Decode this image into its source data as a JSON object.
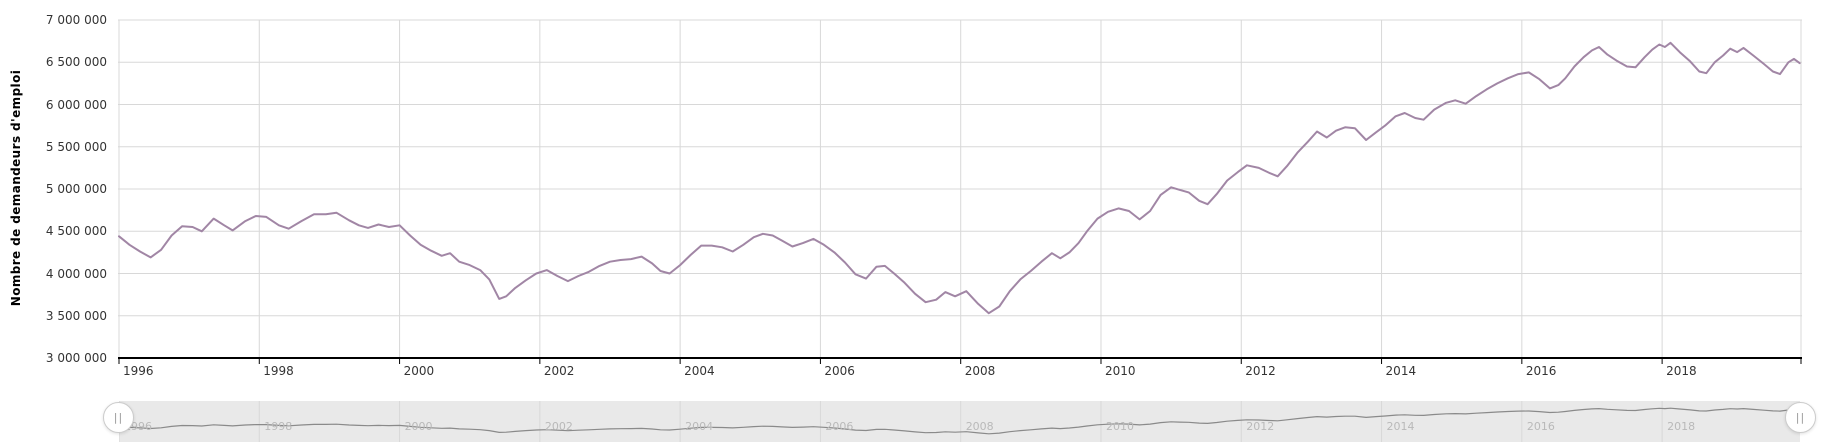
{
  "colors": {
    "series": "#a186a5",
    "grid": "#d8d8d8",
    "axis_line": "#000000",
    "tick_text": "#333333",
    "nav_bg": "#e9e9e9",
    "nav_grid": "#d8d8d8",
    "nav_line": "#8a8a8a",
    "nav_label": "#b9b9b9",
    "handle_border": "#cccccc",
    "handle_bg": "#ffffff",
    "handle_grip": "#999999"
  },
  "navigator": {
    "handle_icon": "||",
    "year_labels": [
      "1996",
      "1998",
      "2000",
      "2002",
      "2004",
      "2006",
      "2008",
      "2010",
      "2012",
      "2014",
      "2016",
      "2018"
    ]
  },
  "chart_data": {
    "type": "line",
    "title": "",
    "xlabel": "",
    "ylabel": "Nombre de demandeurs d'emploi",
    "grid": true,
    "legend": "none",
    "xlim": [
      1996,
      2019.98
    ],
    "ylim": [
      3000000,
      7000000
    ],
    "x_tick_years": [
      1996,
      1998,
      2000,
      2002,
      2004,
      2006,
      2008,
      2010,
      2012,
      2014,
      2016,
      2018
    ],
    "x_tick_labels": [
      "1996",
      "1998",
      "2000",
      "2002",
      "2004",
      "2006",
      "2008",
      "2010",
      "2012",
      "2014",
      "2016",
      "2018"
    ],
    "y_tick_values": [
      3000000,
      3500000,
      4000000,
      4500000,
      5000000,
      5500000,
      6000000,
      6500000,
      7000000
    ],
    "y_tick_labels": [
      "3 000 000",
      "3 500 000",
      "4 000 000",
      "4 500 000",
      "5 000 000",
      "5 500 000",
      "6 000 000",
      "6 500 000",
      "7 000 000"
    ],
    "series": [
      {
        "name": "Nombre de demandeurs d'emploi",
        "points": [
          [
            1996.0,
            4440000
          ],
          [
            1996.15,
            4340000
          ],
          [
            1996.3,
            4260000
          ],
          [
            1996.45,
            4190000
          ],
          [
            1996.6,
            4280000
          ],
          [
            1996.75,
            4450000
          ],
          [
            1996.9,
            4560000
          ],
          [
            1997.05,
            4550000
          ],
          [
            1997.18,
            4500000
          ],
          [
            1997.35,
            4650000
          ],
          [
            1997.5,
            4570000
          ],
          [
            1997.62,
            4510000
          ],
          [
            1997.8,
            4620000
          ],
          [
            1997.95,
            4680000
          ],
          [
            1998.1,
            4670000
          ],
          [
            1998.28,
            4570000
          ],
          [
            1998.42,
            4530000
          ],
          [
            1998.6,
            4620000
          ],
          [
            1998.78,
            4700000
          ],
          [
            1998.95,
            4700000
          ],
          [
            1999.1,
            4720000
          ],
          [
            1999.28,
            4630000
          ],
          [
            1999.42,
            4570000
          ],
          [
            1999.55,
            4540000
          ],
          [
            1999.7,
            4580000
          ],
          [
            1999.85,
            4550000
          ],
          [
            2000.0,
            4570000
          ],
          [
            2000.15,
            4450000
          ],
          [
            2000.3,
            4340000
          ],
          [
            2000.45,
            4270000
          ],
          [
            2000.6,
            4210000
          ],
          [
            2000.72,
            4240000
          ],
          [
            2000.85,
            4140000
          ],
          [
            2001.0,
            4100000
          ],
          [
            2001.15,
            4040000
          ],
          [
            2001.28,
            3930000
          ],
          [
            2001.42,
            3700000
          ],
          [
            2001.52,
            3730000
          ],
          [
            2001.65,
            3830000
          ],
          [
            2001.8,
            3920000
          ],
          [
            2001.95,
            4000000
          ],
          [
            2002.1,
            4040000
          ],
          [
            2002.25,
            3970000
          ],
          [
            2002.4,
            3910000
          ],
          [
            2002.55,
            3970000
          ],
          [
            2002.7,
            4020000
          ],
          [
            2002.85,
            4090000
          ],
          [
            2003.0,
            4140000
          ],
          [
            2003.15,
            4160000
          ],
          [
            2003.3,
            4170000
          ],
          [
            2003.45,
            4200000
          ],
          [
            2003.6,
            4120000
          ],
          [
            2003.72,
            4030000
          ],
          [
            2003.85,
            4000000
          ],
          [
            2004.0,
            4100000
          ],
          [
            2004.15,
            4220000
          ],
          [
            2004.3,
            4330000
          ],
          [
            2004.45,
            4330000
          ],
          [
            2004.6,
            4310000
          ],
          [
            2004.75,
            4260000
          ],
          [
            2004.9,
            4340000
          ],
          [
            2005.05,
            4430000
          ],
          [
            2005.18,
            4470000
          ],
          [
            2005.32,
            4450000
          ],
          [
            2005.45,
            4390000
          ],
          [
            2005.6,
            4320000
          ],
          [
            2005.75,
            4360000
          ],
          [
            2005.9,
            4410000
          ],
          [
            2006.05,
            4340000
          ],
          [
            2006.2,
            4250000
          ],
          [
            2006.35,
            4130000
          ],
          [
            2006.5,
            3990000
          ],
          [
            2006.65,
            3940000
          ],
          [
            2006.8,
            4080000
          ],
          [
            2006.92,
            4090000
          ],
          [
            2007.05,
            4000000
          ],
          [
            2007.2,
            3890000
          ],
          [
            2007.35,
            3760000
          ],
          [
            2007.5,
            3660000
          ],
          [
            2007.65,
            3690000
          ],
          [
            2007.78,
            3780000
          ],
          [
            2007.92,
            3730000
          ],
          [
            2008.08,
            3790000
          ],
          [
            2008.25,
            3640000
          ],
          [
            2008.4,
            3530000
          ],
          [
            2008.55,
            3610000
          ],
          [
            2008.7,
            3790000
          ],
          [
            2008.85,
            3930000
          ],
          [
            2009.0,
            4030000
          ],
          [
            2009.15,
            4140000
          ],
          [
            2009.3,
            4240000
          ],
          [
            2009.42,
            4180000
          ],
          [
            2009.55,
            4250000
          ],
          [
            2009.68,
            4360000
          ],
          [
            2009.8,
            4500000
          ],
          [
            2009.95,
            4650000
          ],
          [
            2010.1,
            4730000
          ],
          [
            2010.25,
            4770000
          ],
          [
            2010.4,
            4740000
          ],
          [
            2010.55,
            4640000
          ],
          [
            2010.7,
            4740000
          ],
          [
            2010.85,
            4930000
          ],
          [
            2011.0,
            5020000
          ],
          [
            2011.12,
            4990000
          ],
          [
            2011.25,
            4960000
          ],
          [
            2011.4,
            4860000
          ],
          [
            2011.52,
            4820000
          ],
          [
            2011.65,
            4940000
          ],
          [
            2011.8,
            5100000
          ],
          [
            2011.95,
            5200000
          ],
          [
            2012.08,
            5280000
          ],
          [
            2012.25,
            5250000
          ],
          [
            2012.4,
            5190000
          ],
          [
            2012.52,
            5150000
          ],
          [
            2012.65,
            5270000
          ],
          [
            2012.8,
            5430000
          ],
          [
            2012.95,
            5560000
          ],
          [
            2013.08,
            5680000
          ],
          [
            2013.22,
            5610000
          ],
          [
            2013.35,
            5690000
          ],
          [
            2013.48,
            5730000
          ],
          [
            2013.62,
            5720000
          ],
          [
            2013.78,
            5580000
          ],
          [
            2013.92,
            5670000
          ],
          [
            2014.05,
            5750000
          ],
          [
            2014.2,
            5860000
          ],
          [
            2014.33,
            5900000
          ],
          [
            2014.48,
            5840000
          ],
          [
            2014.6,
            5820000
          ],
          [
            2014.75,
            5940000
          ],
          [
            2014.92,
            6020000
          ],
          [
            2015.05,
            6050000
          ],
          [
            2015.2,
            6010000
          ],
          [
            2015.35,
            6100000
          ],
          [
            2015.5,
            6180000
          ],
          [
            2015.65,
            6250000
          ],
          [
            2015.8,
            6310000
          ],
          [
            2015.95,
            6360000
          ],
          [
            2016.1,
            6380000
          ],
          [
            2016.25,
            6300000
          ],
          [
            2016.4,
            6190000
          ],
          [
            2016.52,
            6230000
          ],
          [
            2016.62,
            6310000
          ],
          [
            2016.75,
            6450000
          ],
          [
            2016.88,
            6560000
          ],
          [
            2017.0,
            6640000
          ],
          [
            2017.1,
            6680000
          ],
          [
            2017.22,
            6590000
          ],
          [
            2017.35,
            6520000
          ],
          [
            2017.5,
            6450000
          ],
          [
            2017.62,
            6440000
          ],
          [
            2017.75,
            6560000
          ],
          [
            2017.86,
            6650000
          ],
          [
            2017.96,
            6710000
          ],
          [
            2018.04,
            6680000
          ],
          [
            2018.12,
            6730000
          ],
          [
            2018.25,
            6620000
          ],
          [
            2018.4,
            6510000
          ],
          [
            2018.53,
            6390000
          ],
          [
            2018.63,
            6370000
          ],
          [
            2018.75,
            6500000
          ],
          [
            2018.87,
            6580000
          ],
          [
            2018.97,
            6660000
          ],
          [
            2019.07,
            6620000
          ],
          [
            2019.16,
            6670000
          ],
          [
            2019.3,
            6580000
          ],
          [
            2019.45,
            6480000
          ],
          [
            2019.58,
            6390000
          ],
          [
            2019.68,
            6360000
          ],
          [
            2019.8,
            6500000
          ],
          [
            2019.88,
            6540000
          ],
          [
            2019.96,
            6490000
          ]
        ]
      }
    ]
  }
}
